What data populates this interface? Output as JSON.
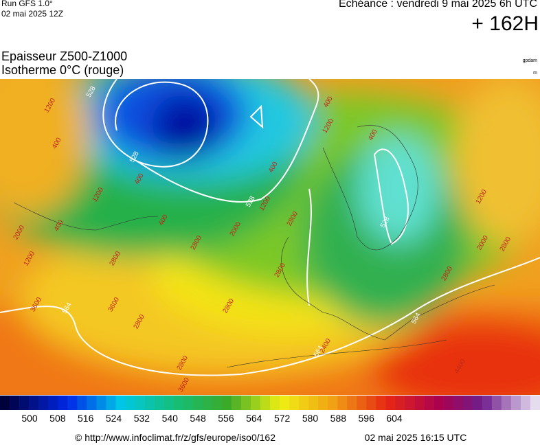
{
  "header": {
    "run": "Run GFS 1.0°",
    "run_date": "02 mai 2025 12Z",
    "valid": "Echéance : vendredi 9 mai 2025 6h UTC",
    "lead": "+ 162H",
    "title_line1": "Epaisseur Z500-Z1000",
    "title_line2": "Isotherme 0°C (rouge)",
    "unit_gpdam": "gpdam",
    "unit_m": "m"
  },
  "map": {
    "contour_labels": [
      "528",
      "528",
      "528",
      "528",
      "564",
      "564",
      "564",
      "1200",
      "400",
      "400",
      "1200",
      "400",
      "2000",
      "1200",
      "400",
      "1200",
      "400",
      "400",
      "1200",
      "400",
      "2800",
      "2000",
      "2800",
      "3600",
      "2800",
      "2800",
      "2800",
      "2800",
      "2800",
      "3600",
      "3600",
      "2000",
      "2800",
      "1200",
      "2800",
      "2400",
      "4400"
    ]
  },
  "colorbar": {
    "labels": [
      500,
      508,
      516,
      524,
      532,
      540,
      548,
      556,
      564,
      572,
      580,
      588,
      596,
      604
    ]
  },
  "footer": {
    "url": "© http://www.infoclimat.fr/z/gfs/europe/iso0/162",
    "timestamp": "02 mai 2025 16:15 UTC"
  }
}
